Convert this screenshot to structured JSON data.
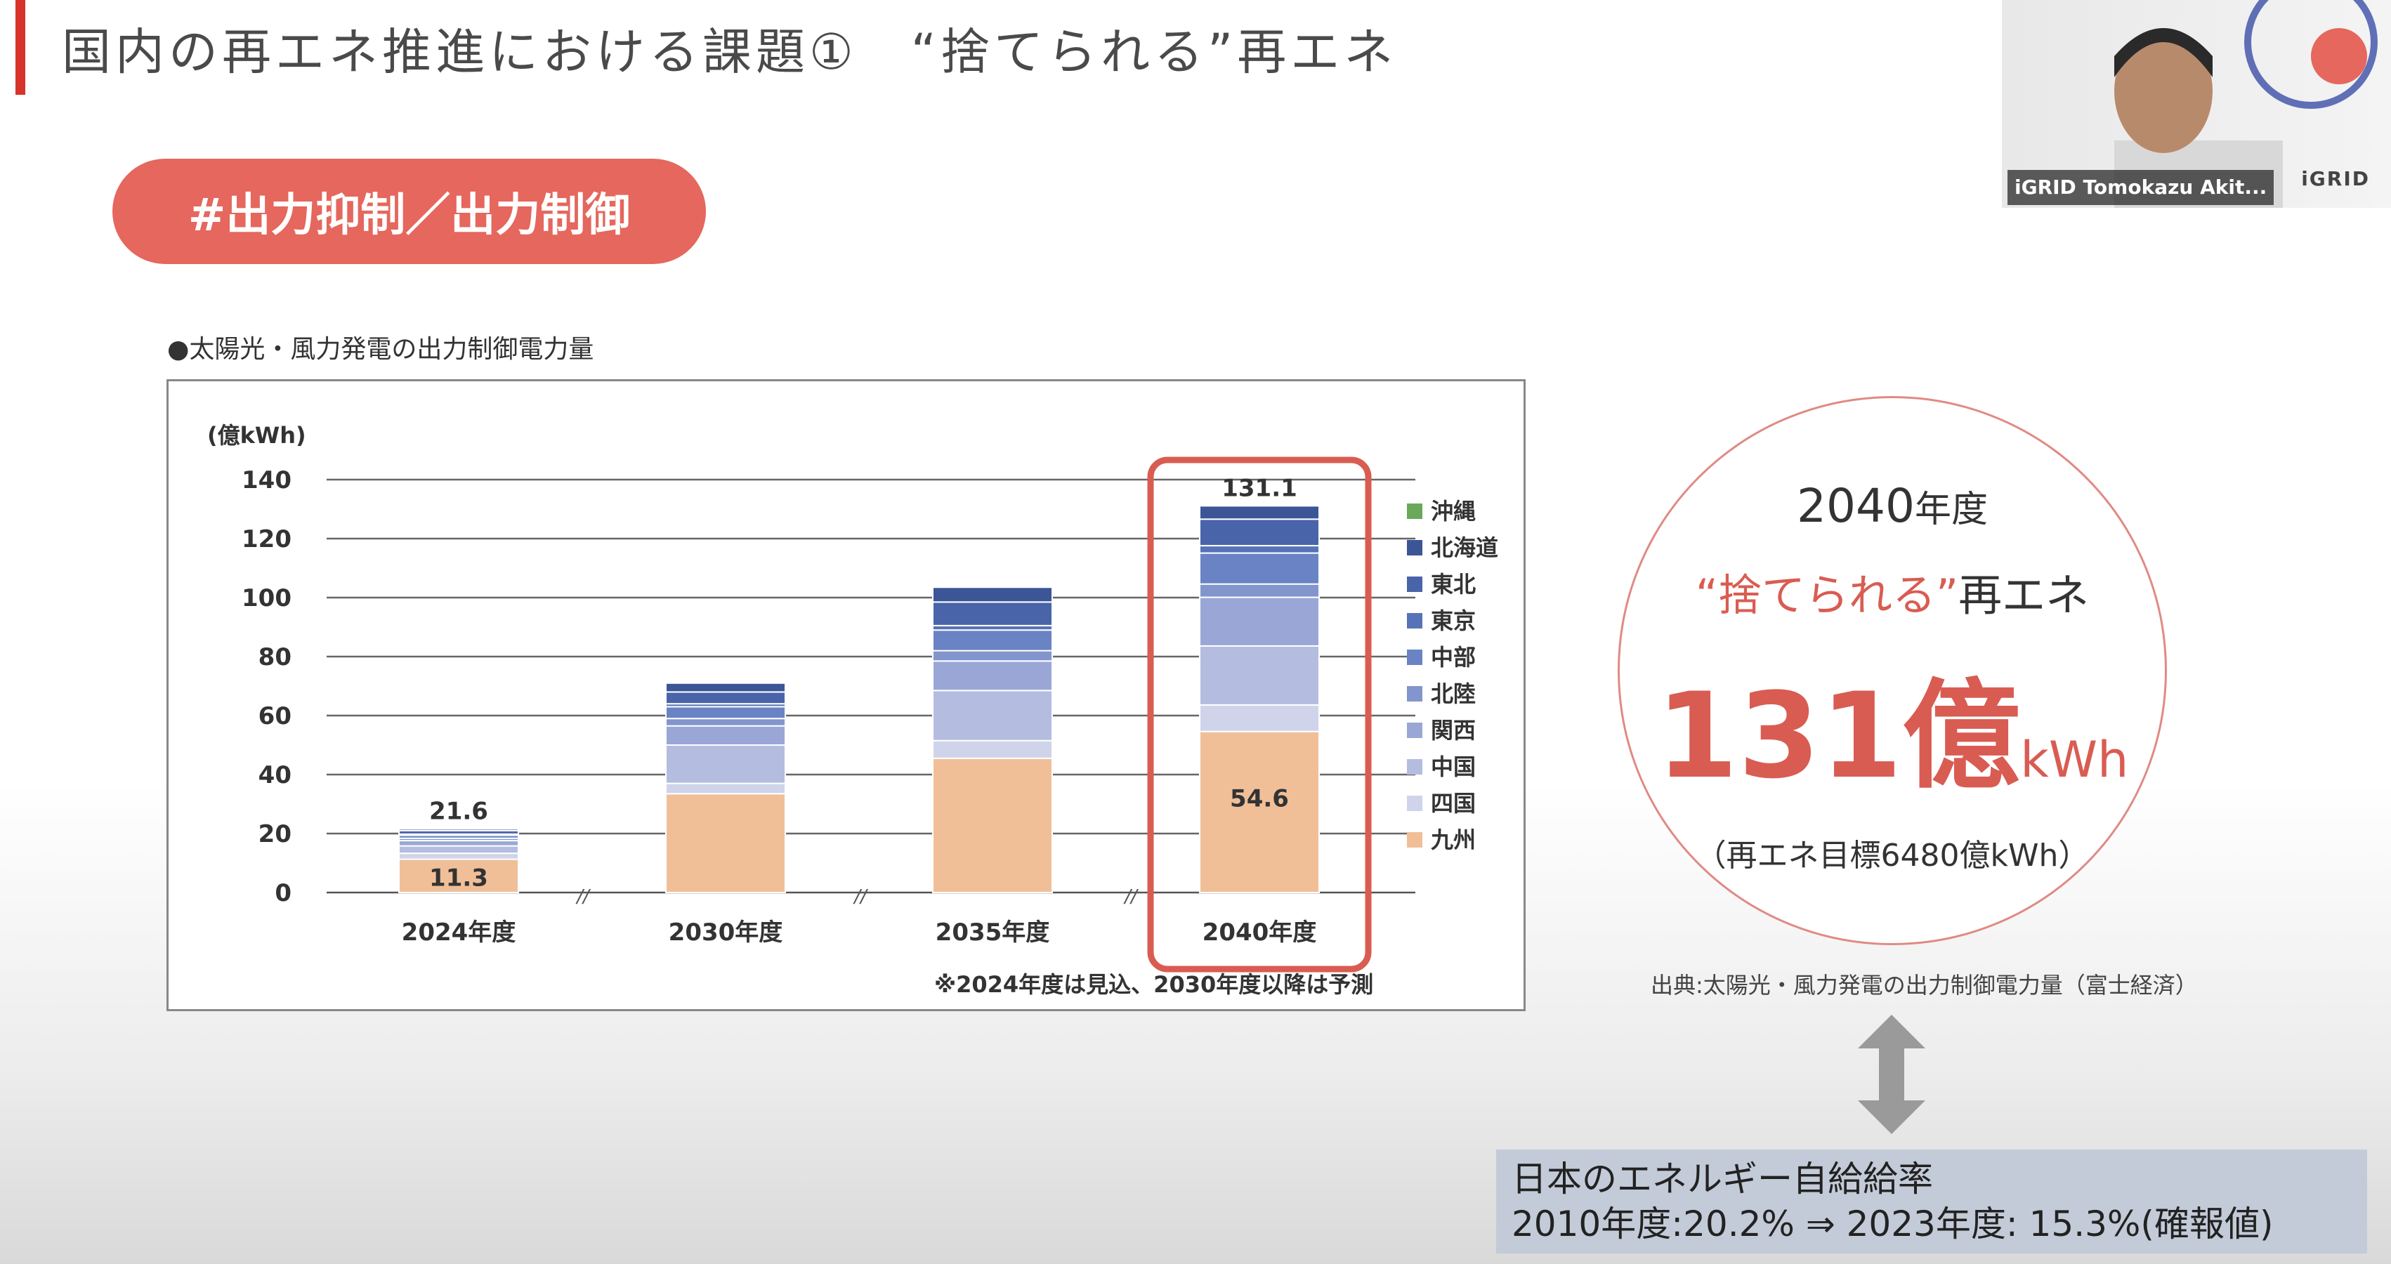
{
  "slide": {
    "title": "国内の再エネ推進における課題①　“捨てられる”再エネ",
    "tag": "#出力抑制／出力制御"
  },
  "chart_data": {
    "type": "bar",
    "title": "●太陽光・風力発電の出力制御電力量",
    "ylabel": "(億kWh)",
    "ylim": [
      0,
      140
    ],
    "yticks": [
      0,
      20,
      40,
      60,
      80,
      100,
      120,
      140
    ],
    "categories": [
      "2024年度",
      "2030年度",
      "2035年度",
      "2040年度"
    ],
    "series": [
      {
        "name": "九州",
        "color": "#f0bf98",
        "values": [
          11.3,
          33.5,
          45.5,
          54.6
        ]
      },
      {
        "name": "四国",
        "color": "#cfd4ea",
        "values": [
          2.0,
          3.5,
          6.0,
          9.0
        ]
      },
      {
        "name": "中国",
        "color": "#b4bde0",
        "values": [
          2.5,
          13.0,
          17.0,
          20.0
        ]
      },
      {
        "name": "関西",
        "color": "#9aa7d6",
        "values": [
          1.8,
          6.5,
          10.0,
          16.5
        ]
      },
      {
        "name": "北陸",
        "color": "#8295cc",
        "values": [
          0.8,
          2.5,
          3.5,
          4.5
        ]
      },
      {
        "name": "中部",
        "color": "#6a83c4",
        "values": [
          1.0,
          4.0,
          7.0,
          10.5
        ]
      },
      {
        "name": "東京",
        "color": "#5673b8",
        "values": [
          0.4,
          1.0,
          1.5,
          2.5
        ]
      },
      {
        "name": "東北",
        "color": "#4a64aa",
        "values": [
          1.2,
          4.0,
          8.0,
          9.0
        ]
      },
      {
        "name": "北海道",
        "color": "#3b5596",
        "values": [
          0.6,
          3.0,
          5.0,
          4.5
        ]
      },
      {
        "name": "沖縄",
        "color": "#6aa85a",
        "values": [
          0,
          0,
          0,
          0
        ]
      }
    ],
    "data_labels": [
      {
        "category": "2024年度",
        "label": "21.6",
        "position": "top"
      },
      {
        "category": "2024年度",
        "label": "11.3",
        "position": "kyushu"
      },
      {
        "category": "2040年度",
        "label": "131.1",
        "position": "top"
      },
      {
        "category": "2040年度",
        "label": "54.6",
        "position": "kyushu"
      }
    ],
    "highlight": "2040年度",
    "legend_position": "right",
    "footnote": "※2024年度は見込、2030年度以降は予測",
    "axis_break_mark": "//",
    "grid": true
  },
  "callout": {
    "year": "2040",
    "year_suffix": "年度",
    "wasted_label": "“捨てられる”",
    "wasted_suffix": "再エネ",
    "amount": "131億",
    "unit": "kWh",
    "target_note": "（再エネ目標6480億kWh）",
    "source": "出典:太陽光・風力発電の出力制御電力量（富士経済）"
  },
  "info": {
    "line1": "日本のエネルギー自給給率",
    "line2": "2010年度:20.2% ⇒ 2023年度: 15.3%(確報値)"
  },
  "video": {
    "participant_name": "iGRID Tomokazu Akit...",
    "logo_text": "iGRID"
  },
  "colors": {
    "accent": "#d6332b",
    "pill": "#e5675d",
    "highlight": "#d95c52"
  }
}
